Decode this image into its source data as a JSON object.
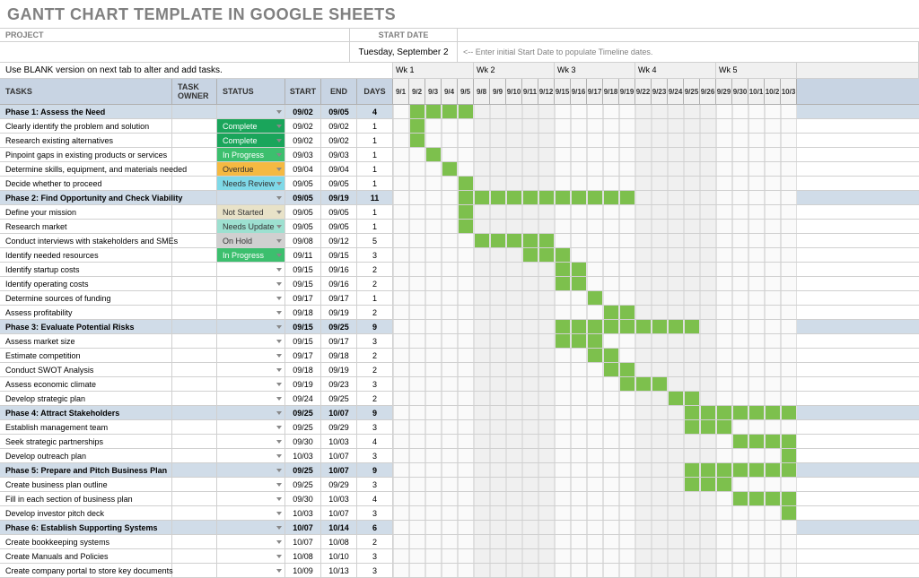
{
  "title": "GANTT CHART TEMPLATE IN GOOGLE SHEETS",
  "labels": {
    "project": "PROJECT",
    "start_date": "START DATE",
    "hint": "<-- Enter initial Start Date to populate Timeline dates.",
    "note": "Use BLANK version on next tab to alter and add tasks.",
    "start_date_value": "Tuesday, September 2"
  },
  "columns": {
    "task": "TASKS",
    "owner": "TASK OWNER",
    "status": "STATUS",
    "start": "START",
    "end": "END",
    "days": "DAYS"
  },
  "weeks": [
    "Wk 1",
    "Wk 2",
    "Wk 3",
    "Wk 4",
    "Wk 5",
    ""
  ],
  "day_headers": [
    "9/1",
    "9/2",
    "9/3",
    "9/4",
    "9/5",
    "9/8",
    "9/9",
    "9/10",
    "9/11",
    "9/12",
    "9/15",
    "9/16",
    "9/17",
    "9/18",
    "9/19",
    "9/22",
    "9/23",
    "9/24",
    "9/25",
    "9/26",
    "9/29",
    "9/30",
    "10/1",
    "10/2",
    "10/3"
  ],
  "status_colors": {
    "In Progress": "#3cbf6e",
    "Complete": "#1aa55b",
    "Overdue": "#f5b942",
    "Needs Review": "#7fd9e8",
    "Not Started": "#e8e2c8",
    "Needs Update": "#9de0d0",
    "On Hold": "#d0d0d0",
    "_default": "#d0dce8"
  },
  "rows": [
    {
      "phase": true,
      "task": "Phase 1: Assess the Need",
      "status": "",
      "start": "09/02",
      "end": "09/05",
      "days": "4",
      "bar_start": 1,
      "bar_len": 4
    },
    {
      "task": "Clearly identify the problem and solution",
      "status": "Complete",
      "start": "09/02",
      "end": "09/02",
      "days": "1",
      "bar_start": 1,
      "bar_len": 1
    },
    {
      "task": "Research existing alternatives",
      "status": "Complete",
      "start": "09/02",
      "end": "09/02",
      "days": "1",
      "bar_start": 1,
      "bar_len": 1
    },
    {
      "task": "Pinpoint gaps in existing products or services",
      "status": "In Progress",
      "start": "09/03",
      "end": "09/03",
      "days": "1",
      "bar_start": 2,
      "bar_len": 1
    },
    {
      "task": "Determine skills, equipment, and materials needed",
      "status": "Overdue",
      "start": "09/04",
      "end": "09/04",
      "days": "1",
      "bar_start": 3,
      "bar_len": 1
    },
    {
      "task": "Decide whether to proceed",
      "status": "Needs Review",
      "start": "09/05",
      "end": "09/05",
      "days": "1",
      "bar_start": 4,
      "bar_len": 1
    },
    {
      "phase": true,
      "task": "Phase 2: Find Opportunity and Check Viability",
      "status": "",
      "start": "09/05",
      "end": "09/19",
      "days": "11",
      "bar_start": 4,
      "bar_len": 11
    },
    {
      "task": "Define your mission",
      "status": "Not Started",
      "start": "09/05",
      "end": "09/05",
      "days": "1",
      "bar_start": 4,
      "bar_len": 1
    },
    {
      "task": "Research market",
      "status": "Needs Update",
      "start": "09/05",
      "end": "09/05",
      "days": "1",
      "bar_start": 4,
      "bar_len": 1
    },
    {
      "task": "Conduct interviews with stakeholders and SMEs",
      "status": "On Hold",
      "start": "09/08",
      "end": "09/12",
      "days": "5",
      "bar_start": 5,
      "bar_len": 5
    },
    {
      "task": "Identify needed resources",
      "status": "In Progress",
      "start": "09/11",
      "end": "09/15",
      "days": "3",
      "bar_start": 8,
      "bar_len": 3
    },
    {
      "task": "Identify startup costs",
      "status": "",
      "start": "09/15",
      "end": "09/16",
      "days": "2",
      "bar_start": 10,
      "bar_len": 2
    },
    {
      "task": "Identify operating costs",
      "status": "",
      "start": "09/15",
      "end": "09/16",
      "days": "2",
      "bar_start": 10,
      "bar_len": 2
    },
    {
      "task": "Determine sources of funding",
      "status": "",
      "start": "09/17",
      "end": "09/17",
      "days": "1",
      "bar_start": 12,
      "bar_len": 1
    },
    {
      "task": "Assess profitability",
      "status": "",
      "start": "09/18",
      "end": "09/19",
      "days": "2",
      "bar_start": 13,
      "bar_len": 2
    },
    {
      "phase": true,
      "task": "Phase 3: Evaluate Potential Risks",
      "status": "",
      "start": "09/15",
      "end": "09/25",
      "days": "9",
      "bar_start": 10,
      "bar_len": 9
    },
    {
      "task": "Assess market size",
      "status": "",
      "start": "09/15",
      "end": "09/17",
      "days": "3",
      "bar_start": 10,
      "bar_len": 3
    },
    {
      "task": "Estimate competition",
      "status": "",
      "start": "09/17",
      "end": "09/18",
      "days": "2",
      "bar_start": 12,
      "bar_len": 2
    },
    {
      "task": "Conduct SWOT Analysis",
      "status": "",
      "start": "09/18",
      "end": "09/19",
      "days": "2",
      "bar_start": 13,
      "bar_len": 2
    },
    {
      "task": "Assess economic climate",
      "status": "",
      "start": "09/19",
      "end": "09/23",
      "days": "3",
      "bar_start": 14,
      "bar_len": 3
    },
    {
      "task": "Develop strategic plan",
      "status": "",
      "start": "09/24",
      "end": "09/25",
      "days": "2",
      "bar_start": 17,
      "bar_len": 2
    },
    {
      "phase": true,
      "task": "Phase 4: Attract Stakeholders",
      "status": "",
      "start": "09/25",
      "end": "10/07",
      "days": "9",
      "bar_start": 18,
      "bar_len": 7
    },
    {
      "task": "Establish management team",
      "status": "",
      "start": "09/25",
      "end": "09/29",
      "days": "3",
      "bar_start": 18,
      "bar_len": 3
    },
    {
      "task": "Seek strategic partnerships",
      "status": "",
      "start": "09/30",
      "end": "10/03",
      "days": "4",
      "bar_start": 21,
      "bar_len": 4
    },
    {
      "task": "Develop outreach plan",
      "status": "",
      "start": "10/03",
      "end": "10/07",
      "days": "3",
      "bar_start": 24,
      "bar_len": 1
    },
    {
      "phase": true,
      "task": "Phase 5: Prepare and Pitch Business Plan",
      "status": "",
      "start": "09/25",
      "end": "10/07",
      "days": "9",
      "bar_start": 18,
      "bar_len": 7
    },
    {
      "task": "Create business plan outline",
      "status": "",
      "start": "09/25",
      "end": "09/29",
      "days": "3",
      "bar_start": 18,
      "bar_len": 3
    },
    {
      "task": "Fill in each section of business plan",
      "status": "",
      "start": "09/30",
      "end": "10/03",
      "days": "4",
      "bar_start": 21,
      "bar_len": 4
    },
    {
      "task": "Develop investor pitch deck",
      "status": "",
      "start": "10/03",
      "end": "10/07",
      "days": "3",
      "bar_start": 24,
      "bar_len": 1
    },
    {
      "phase": true,
      "task": "Phase 6: Establish Supporting Systems",
      "status": "",
      "start": "10/07",
      "end": "10/14",
      "days": "6",
      "bar_start": -1,
      "bar_len": 0
    },
    {
      "task": "Create bookkeeping systems",
      "status": "",
      "start": "10/07",
      "end": "10/08",
      "days": "2",
      "bar_start": -1,
      "bar_len": 0
    },
    {
      "task": "Create Manuals and Policies",
      "status": "",
      "start": "10/08",
      "end": "10/10",
      "days": "3",
      "bar_start": -1,
      "bar_len": 0
    },
    {
      "task": "Create company portal to store key documents",
      "status": "",
      "start": "10/09",
      "end": "10/13",
      "days": "3",
      "bar_start": -1,
      "bar_len": 0
    }
  ],
  "colors": {
    "phase_bg": "#d0dce8",
    "header_bg": "#c8d4e3",
    "bar": "#7dc04d",
    "grid": "#d0d0d0",
    "alt_day": "#f0f0f0"
  }
}
